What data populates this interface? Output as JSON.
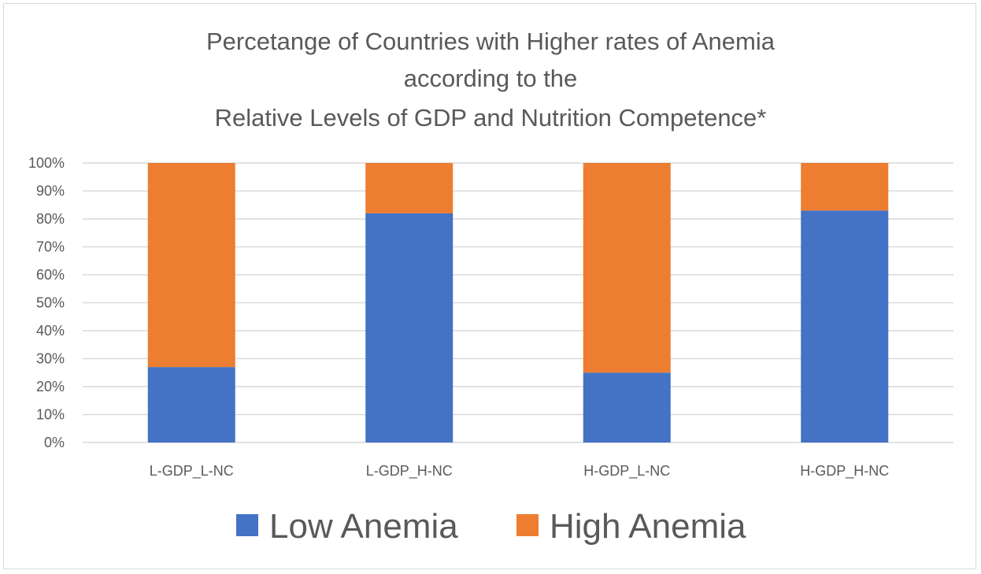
{
  "chart_data": {
    "type": "bar",
    "stacked": true,
    "percent_stacked": true,
    "title_lines": [
      "Percetange of Countries with Higher rates of Anemia",
      "according to the",
      "Relative Levels of GDP and Nutrition Competence*"
    ],
    "categories": [
      "L-GDP_L-NC",
      "L-GDP_H-NC",
      "H-GDP_L-NC",
      "H-GDP_H-NC"
    ],
    "series": [
      {
        "name": "Low Anemia",
        "color": "#4472C4",
        "values": [
          27,
          82,
          25,
          83
        ]
      },
      {
        "name": "High Anemia",
        "color": "#ED7D31",
        "values": [
          73,
          18,
          75,
          17
        ]
      }
    ],
    "yticks": [
      "0%",
      "10%",
      "20%",
      "30%",
      "40%",
      "50%",
      "60%",
      "70%",
      "80%",
      "90%",
      "100%"
    ],
    "ylim": [
      0,
      100
    ],
    "grid": true,
    "legend_position": "bottom",
    "xlabel": "",
    "ylabel": ""
  }
}
